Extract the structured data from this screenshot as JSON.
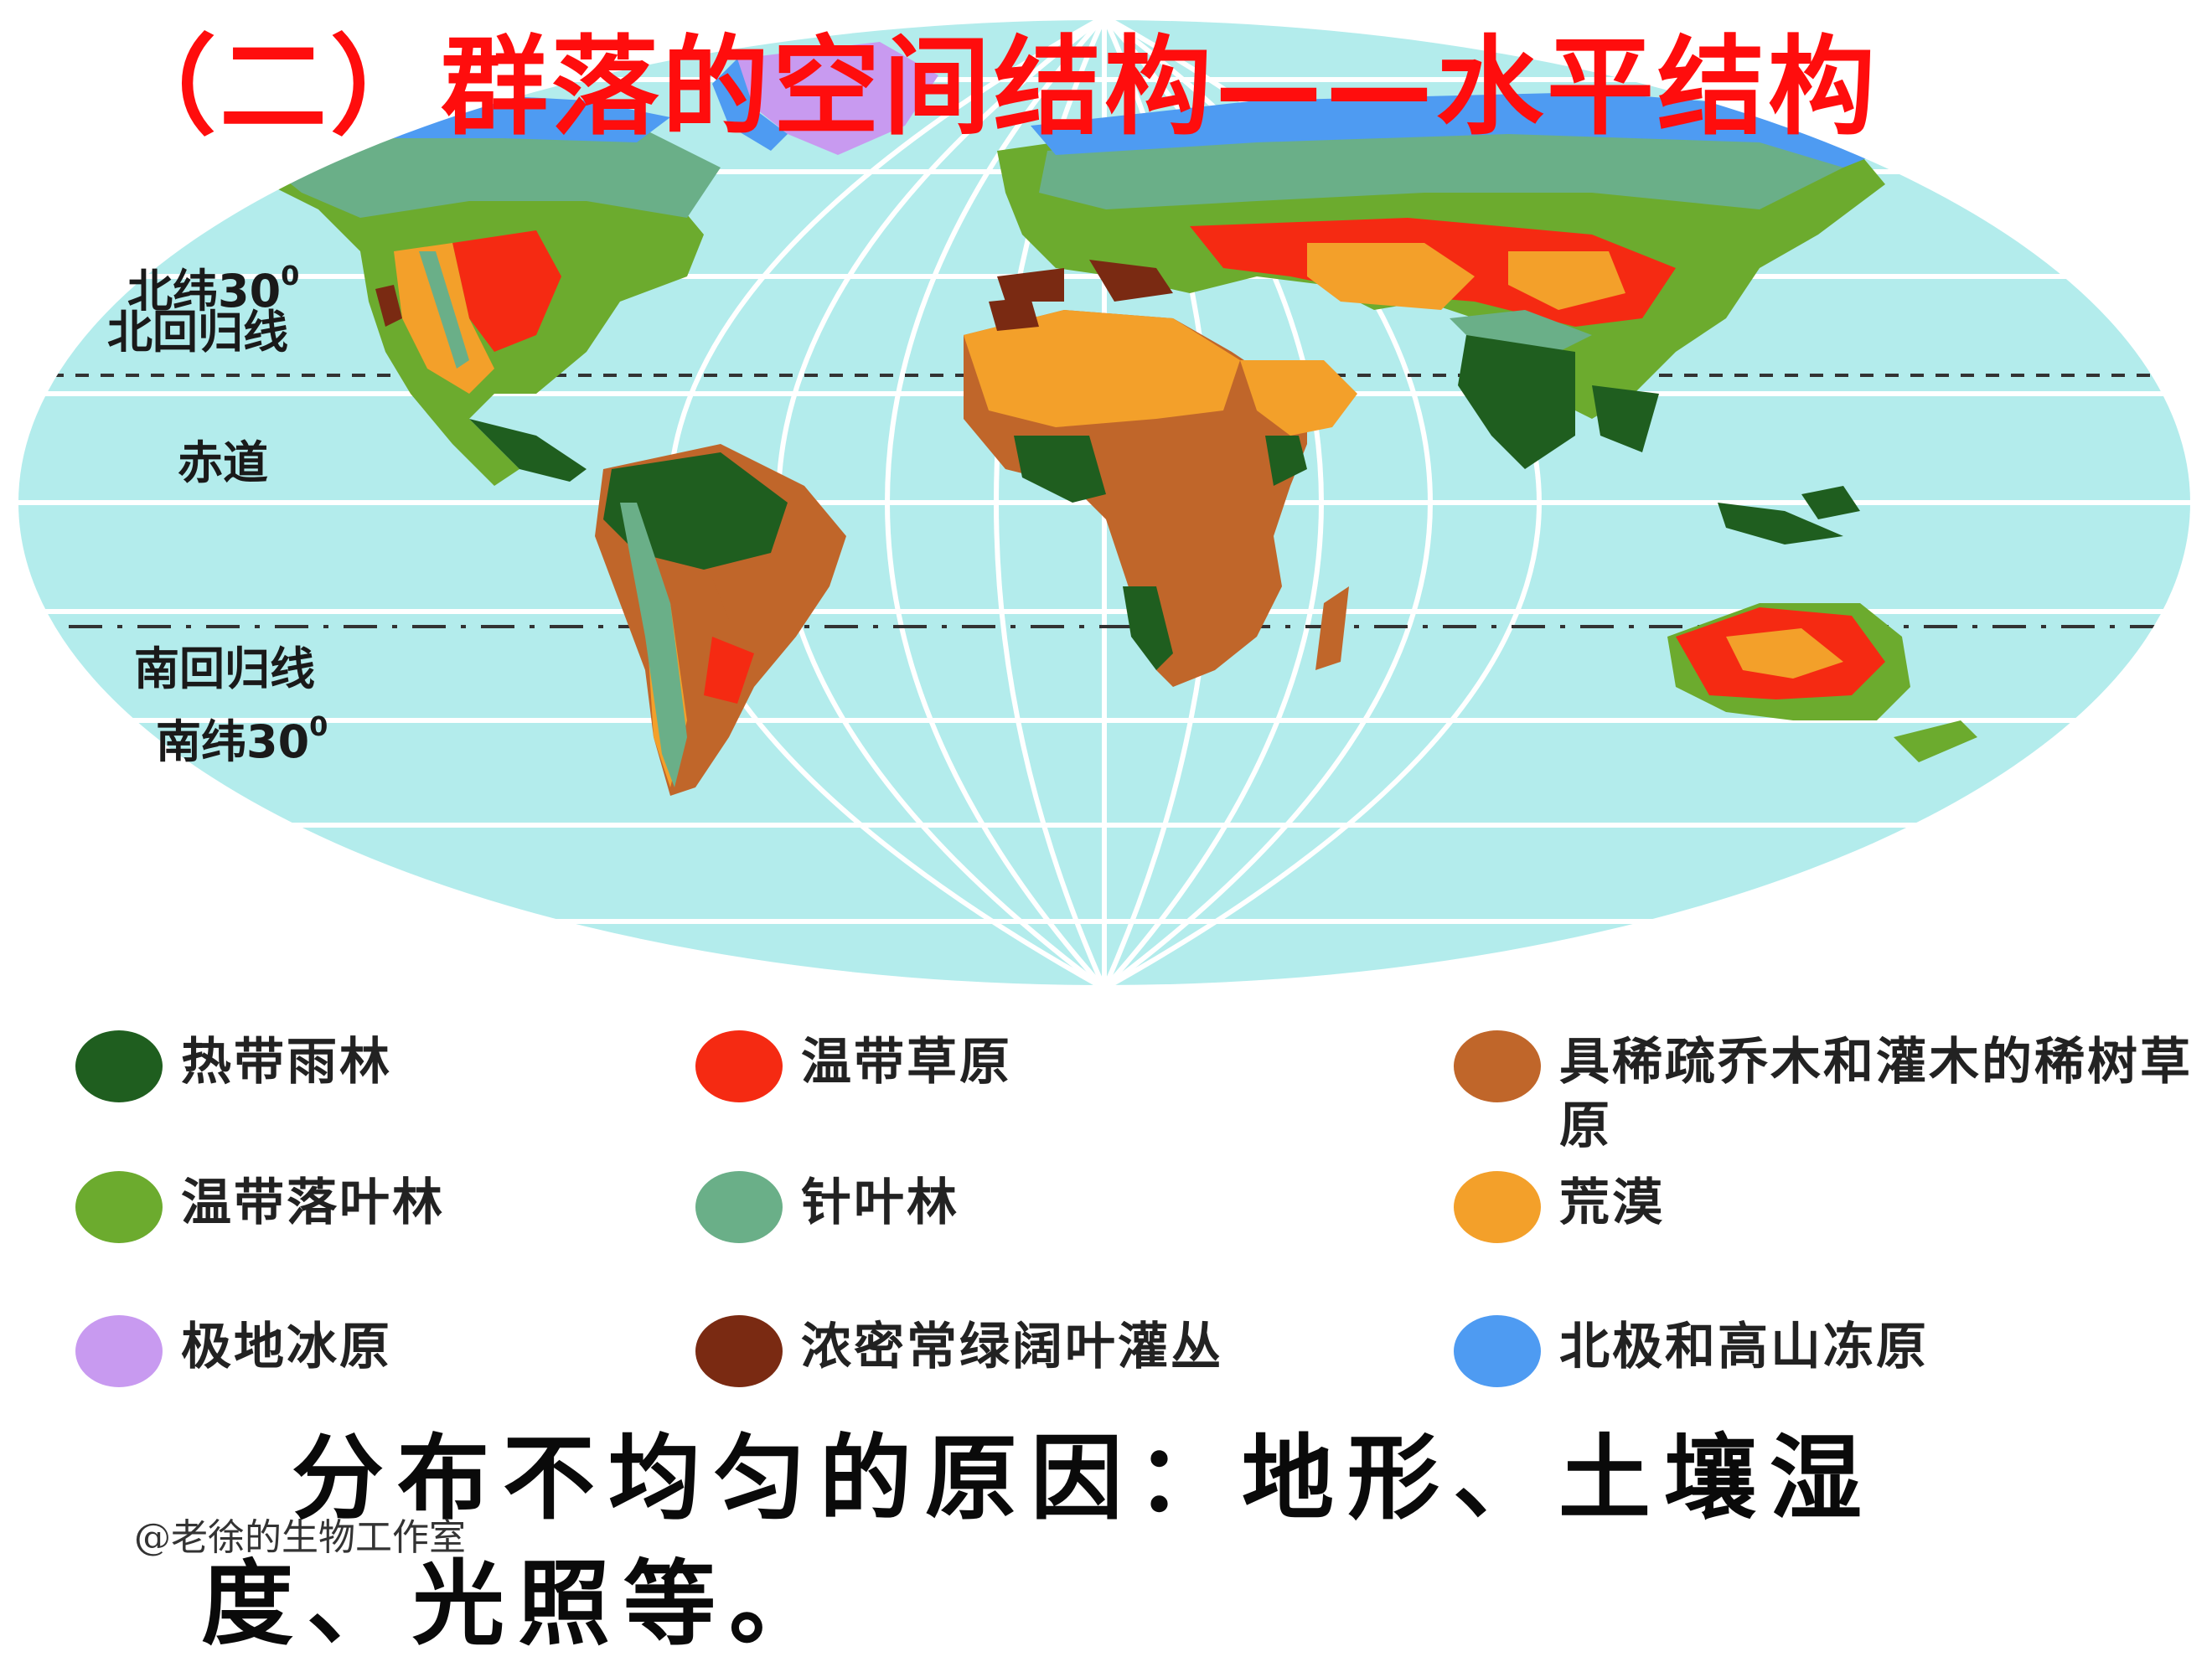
{
  "title": "（二）群落的空间结构——水平结构",
  "latitude_labels": {
    "north_30": {
      "text": "北纬30",
      "sup": "0"
    },
    "tropic_of_cancer": "北回归线",
    "equator": "赤道",
    "tropic_of_capricorn": "南回归线",
    "south_30": {
      "text": "南纬30",
      "sup": "0"
    }
  },
  "legend": [
    {
      "label": "热带雨林",
      "color": "#1f5e1f"
    },
    {
      "label": "温带草原",
      "color": "#f52a12"
    },
    {
      "label": "具稀疏乔木和灌木的稀树草原",
      "color": "#c0662a"
    },
    {
      "label": "温带落叶林",
      "color": "#6cab2e"
    },
    {
      "label": "针叶林",
      "color": "#6aaf88"
    },
    {
      "label": "荒漠",
      "color": "#f3a02a"
    },
    {
      "label": "极地冰原",
      "color": "#c89af0"
    },
    {
      "label": "浓密常绿阔叶灌丛",
      "color": "#7a2a12"
    },
    {
      "label": "北极和高山冻原",
      "color": "#4e9bf2"
    }
  ],
  "map_colors": {
    "ocean": "#b3ecec",
    "grid": "#ffffff"
  },
  "reason_text": "分布不均匀的原因：地形、土壤湿度、光照等。",
  "watermark": "@老徐的生物工作室"
}
